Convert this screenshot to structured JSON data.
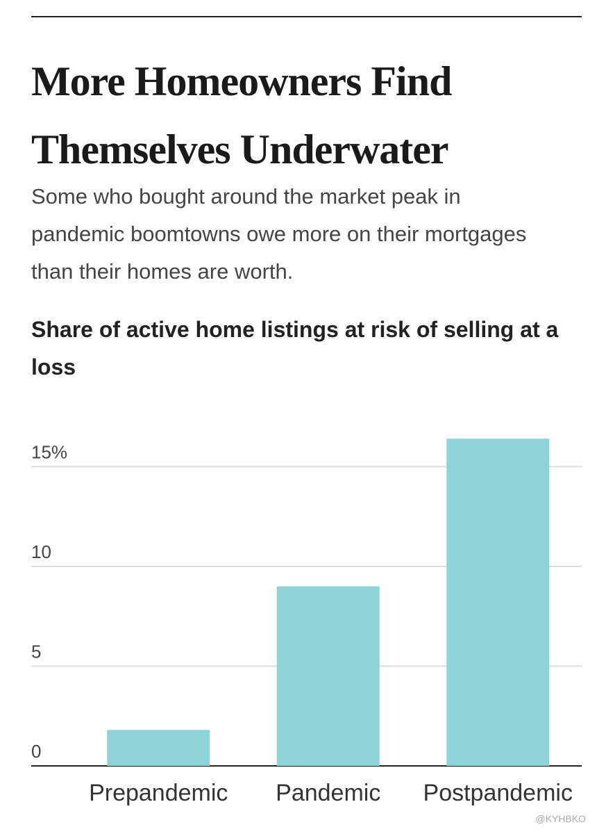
{
  "chart_data": {
    "type": "bar",
    "title": "More Homeowners Find Themselves Underwater",
    "subtitle": "Some who bought around the market peak in pandemic boomtowns owe more on their mortgages than their homes are worth.",
    "chart_title": "Share of active home listings at risk of selling at a loss",
    "categories": [
      "Prepandemic",
      "Pandemic",
      "Postpandemic"
    ],
    "values": [
      1.8,
      9.0,
      16.4
    ],
    "color": "#8fd3d8",
    "ylim": [
      0,
      17
    ],
    "yticks": [
      0,
      5,
      10,
      {
        "value": 15,
        "label": "15%"
      }
    ],
    "grid": true,
    "watermark": "@KYHBKO"
  }
}
